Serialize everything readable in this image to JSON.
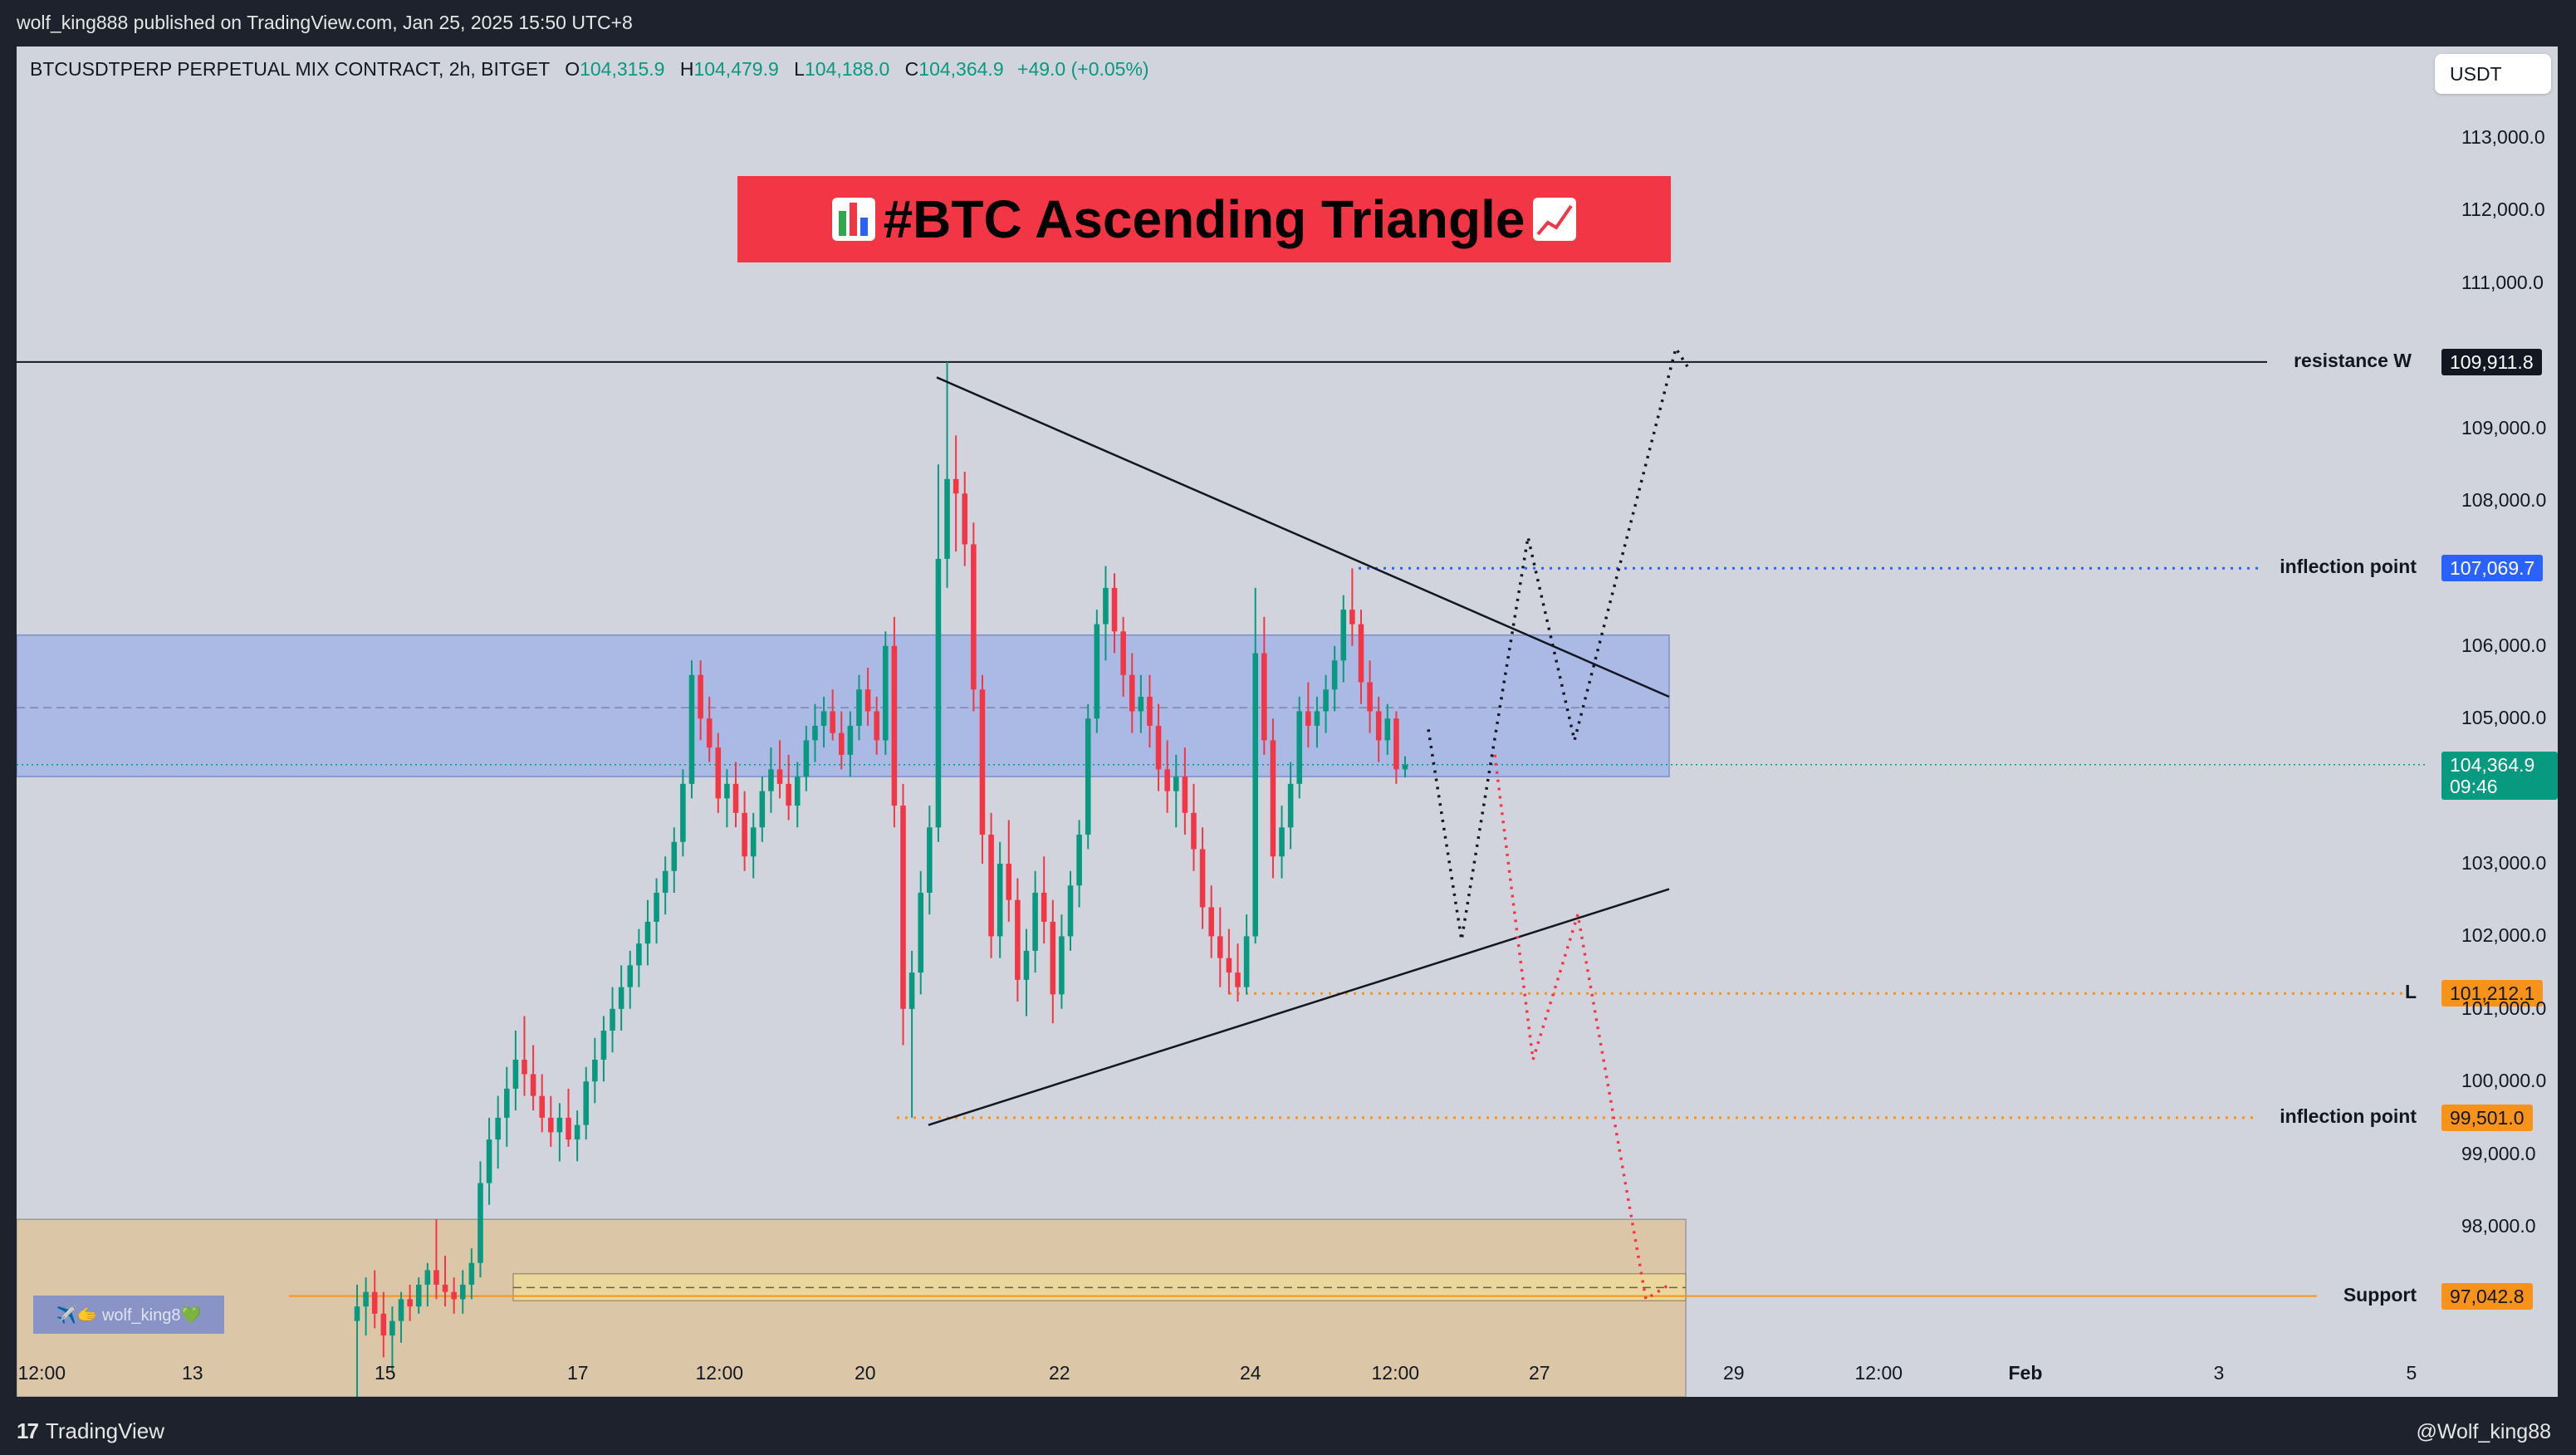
{
  "header": {
    "published": "wolf_king888 published on TradingView.com, Jan 25, 2025 15:50 UTC+8"
  },
  "footer": {
    "brand": "TradingView",
    "author": "@Wolf_king88"
  },
  "symbol": {
    "name": "BTCUSDTPERP PERPETUAL MIX CONTRACT, 2h, BITGET",
    "o_key": "O",
    "o": "104,315.9",
    "h_key": "H",
    "h": "104,479.9",
    "l_key": "L",
    "l": "104,188.0",
    "c_key": "C",
    "c": "104,364.9",
    "change": "+49.0 (+0.05%)"
  },
  "currency": "USDT",
  "title": "#BTC Ascending Triangle",
  "watermark": "✈️🫱 wolf_king8💚",
  "colors": {
    "background": "#d1d4dc",
    "bull": "#089981",
    "bear": "#f23645",
    "banner": "#f23645",
    "inflection_upper": "#2962ff",
    "inflection_lower": "#f7931a",
    "support": "#f7931a",
    "zone_blue": "#a5b4e6",
    "zone_tan": "#dcc5a1"
  },
  "chart_data": {
    "type": "candlestick",
    "y_axis": {
      "range": [
        95500,
        113800
      ],
      "ticks": [
        "113,000.0",
        "112,000.0",
        "111,000.0",
        "109,000.0",
        "108,000.0",
        "106,000.0",
        "105,000.0",
        "103,000.0",
        "102,000.0",
        "101,000.0",
        "100,000.0",
        "99,000.0",
        "98,000.0"
      ]
    },
    "x_axis": {
      "ticks": [
        "12:00",
        "13",
        "15",
        "17",
        "12:00",
        "20",
        "22",
        "24",
        "12:00",
        "27",
        "29",
        "12:00",
        "Feb",
        "3",
        "5"
      ]
    },
    "price_levels": [
      {
        "label": "resistance W",
        "price": 109911.8,
        "price_text": "109,911.8",
        "style": "solid"
      },
      {
        "label": "inflection point",
        "price": 107069.7,
        "price_text": "107,069.7",
        "style": "dotted"
      },
      {
        "label": "L",
        "price": 101212.1,
        "price_text": "101,212.1",
        "style": "dotted"
      },
      {
        "label": "inflection point",
        "price": 99501.0,
        "price_text": "99,501.0",
        "style": "dotted"
      },
      {
        "label": "Support",
        "price": 97042.8,
        "price_text": "97,042.8",
        "style": "solid"
      }
    ],
    "last_price": {
      "price": 104364.9,
      "price_text": "104,364.9",
      "countdown": "09:46"
    },
    "zones": [
      {
        "name": "blue-zone",
        "from": 104200,
        "to": 106150,
        "mid": 105150
      },
      {
        "name": "tan-zone",
        "from": 95500,
        "to": 98100
      }
    ],
    "triangle": {
      "upper": [
        [
          109700,
          0
        ],
        [
          105300,
          1
        ]
      ],
      "lower": [
        [
          99400,
          0
        ],
        [
          102650,
          1
        ]
      ]
    },
    "candles_ohlc": [
      [
        96700,
        97200,
        95500,
        96900
      ],
      [
        96900,
        97300,
        96500,
        97100
      ],
      [
        97100,
        97400,
        96600,
        96800
      ],
      [
        96800,
        97100,
        96200,
        96500
      ],
      [
        96500,
        96900,
        96000,
        96700
      ],
      [
        96700,
        97100,
        96400,
        97000
      ],
      [
        97000,
        97200,
        96700,
        96900
      ],
      [
        96900,
        97300,
        96800,
        97200
      ],
      [
        97200,
        97500,
        96900,
        97400
      ],
      [
        97400,
        98100,
        97000,
        97200
      ],
      [
        97200,
        97600,
        96900,
        97100
      ],
      [
        97100,
        97300,
        96800,
        97000
      ],
      [
        97000,
        97400,
        96800,
        97200
      ],
      [
        97200,
        97700,
        97000,
        97500
      ],
      [
        97500,
        98900,
        97300,
        98600
      ],
      [
        98600,
        99500,
        98300,
        99200
      ],
      [
        99200,
        99800,
        98800,
        99500
      ],
      [
        99500,
        100200,
        99100,
        99900
      ],
      [
        99900,
        100700,
        99600,
        100300
      ],
      [
        100300,
        100900,
        99800,
        100100
      ],
      [
        100100,
        100500,
        99600,
        99800
      ],
      [
        99800,
        100100,
        99300,
        99500
      ],
      [
        99500,
        99800,
        99100,
        99300
      ],
      [
        99300,
        99700,
        98900,
        99500
      ],
      [
        99500,
        99900,
        99100,
        99200
      ],
      [
        99200,
        99600,
        98900,
        99400
      ],
      [
        99400,
        100200,
        99200,
        100000
      ],
      [
        100000,
        100600,
        99700,
        100300
      ],
      [
        100300,
        100900,
        100000,
        100700
      ],
      [
        100700,
        101300,
        100400,
        101000
      ],
      [
        101000,
        101600,
        100700,
        101300
      ],
      [
        101300,
        101800,
        101000,
        101600
      ],
      [
        101600,
        102100,
        101300,
        101900
      ],
      [
        101900,
        102500,
        101600,
        102200
      ],
      [
        102200,
        102800,
        101900,
        102600
      ],
      [
        102600,
        103100,
        102300,
        102900
      ],
      [
        102900,
        103500,
        102600,
        103300
      ],
      [
        103300,
        104300,
        103100,
        104100
      ],
      [
        104100,
        105800,
        103900,
        105600
      ],
      [
        105600,
        105800,
        104700,
        105000
      ],
      [
        105000,
        105300,
        104400,
        104600
      ],
      [
        104600,
        104800,
        103700,
        103900
      ],
      [
        103900,
        104300,
        103500,
        104100
      ],
      [
        104100,
        104400,
        103500,
        103700
      ],
      [
        103700,
        104000,
        102900,
        103100
      ],
      [
        103100,
        103700,
        102800,
        103500
      ],
      [
        103500,
        104200,
        103300,
        104000
      ],
      [
        104000,
        104600,
        103700,
        104300
      ],
      [
        104300,
        104700,
        103900,
        104100
      ],
      [
        104100,
        104500,
        103600,
        103800
      ],
      [
        103800,
        104400,
        103500,
        104200
      ],
      [
        104200,
        104900,
        104000,
        104700
      ],
      [
        104700,
        105200,
        104400,
        104900
      ],
      [
        104900,
        105300,
        104600,
        105100
      ],
      [
        105100,
        105400,
        104700,
        104800
      ],
      [
        104800,
        105100,
        104300,
        104500
      ],
      [
        104500,
        105100,
        104200,
        104900
      ],
      [
        104900,
        105600,
        104700,
        105400
      ],
      [
        105400,
        105700,
        104900,
        105100
      ],
      [
        105100,
        105300,
        104500,
        104700
      ],
      [
        104700,
        106200,
        104500,
        106000
      ],
      [
        106000,
        106400,
        103500,
        103800
      ],
      [
        103800,
        104100,
        100500,
        101000
      ],
      [
        101000,
        101800,
        99500,
        101500
      ],
      [
        101500,
        102900,
        101200,
        102600
      ],
      [
        102600,
        103800,
        102300,
        103500
      ],
      [
        103500,
        108500,
        103300,
        107200
      ],
      [
        107200,
        109911,
        106800,
        108300
      ],
      [
        108300,
        108900,
        107300,
        108100
      ],
      [
        108100,
        108400,
        107100,
        107400
      ],
      [
        107400,
        107700,
        105100,
        105400
      ],
      [
        105400,
        105600,
        103000,
        103400
      ],
      [
        103400,
        103700,
        101700,
        102000
      ],
      [
        102000,
        103300,
        101700,
        103000
      ],
      [
        103000,
        103600,
        102200,
        102500
      ],
      [
        102500,
        102800,
        101100,
        101400
      ],
      [
        101400,
        102100,
        100900,
        101800
      ],
      [
        101800,
        102900,
        101500,
        102600
      ],
      [
        102600,
        103100,
        101900,
        102200
      ],
      [
        102200,
        102500,
        100800,
        101200
      ],
      [
        101200,
        102300,
        101000,
        102000
      ],
      [
        102000,
        102900,
        101800,
        102700
      ],
      [
        102700,
        103600,
        102400,
        103400
      ],
      [
        103400,
        105200,
        103200,
        105000
      ],
      [
        105000,
        106500,
        104800,
        106300
      ],
      [
        106300,
        107100,
        105800,
        106800
      ],
      [
        106800,
        107000,
        105900,
        106200
      ],
      [
        106200,
        106400,
        105300,
        105600
      ],
      [
        105600,
        105900,
        104800,
        105100
      ],
      [
        105100,
        105600,
        104800,
        105300
      ],
      [
        105300,
        105600,
        104600,
        104900
      ],
      [
        104900,
        105200,
        104000,
        104300
      ],
      [
        104300,
        104700,
        103700,
        104000
      ],
      [
        104000,
        104500,
        103500,
        104200
      ],
      [
        104200,
        104600,
        103400,
        103700
      ],
      [
        103700,
        104100,
        102900,
        103200
      ],
      [
        103200,
        103500,
        102100,
        102400
      ],
      [
        102400,
        102700,
        101700,
        102000
      ],
      [
        102000,
        102400,
        101300,
        101700
      ],
      [
        101700,
        102100,
        101200,
        101500
      ],
      [
        101500,
        101900,
        101100,
        101300
      ],
      [
        101300,
        102300,
        101200,
        102000
      ],
      [
        102000,
        106800,
        101900,
        105900
      ],
      [
        105900,
        106400,
        104500,
        104700
      ],
      [
        104700,
        105000,
        102800,
        103100
      ],
      [
        103100,
        103800,
        102800,
        103500
      ],
      [
        103500,
        104400,
        103200,
        104100
      ],
      [
        104100,
        105300,
        103900,
        105100
      ],
      [
        105100,
        105500,
        104600,
        104900
      ],
      [
        104900,
        105300,
        104600,
        105100
      ],
      [
        105100,
        105600,
        104800,
        105400
      ],
      [
        105400,
        106000,
        105100,
        105800
      ],
      [
        105800,
        106700,
        105500,
        106500
      ],
      [
        106500,
        107069,
        106000,
        106300
      ],
      [
        106300,
        106500,
        105200,
        105500
      ],
      [
        105500,
        105800,
        104800,
        105100
      ],
      [
        105100,
        105300,
        104400,
        104700
      ],
      [
        104700,
        105200,
        104500,
        105000
      ],
      [
        105000,
        105100,
        104100,
        104300
      ],
      [
        104300,
        104480,
        104188,
        104365
      ]
    ],
    "projection_bull": [
      [
        105000,
        0
      ],
      [
        102000,
        0.25
      ],
      [
        107500,
        0.5
      ],
      [
        104700,
        0.7
      ],
      [
        110100,
        1
      ]
    ],
    "projection_bear": [
      [
        104500,
        0
      ],
      [
        100300,
        0.35
      ],
      [
        102300,
        0.55
      ],
      [
        97000,
        1
      ]
    ]
  }
}
